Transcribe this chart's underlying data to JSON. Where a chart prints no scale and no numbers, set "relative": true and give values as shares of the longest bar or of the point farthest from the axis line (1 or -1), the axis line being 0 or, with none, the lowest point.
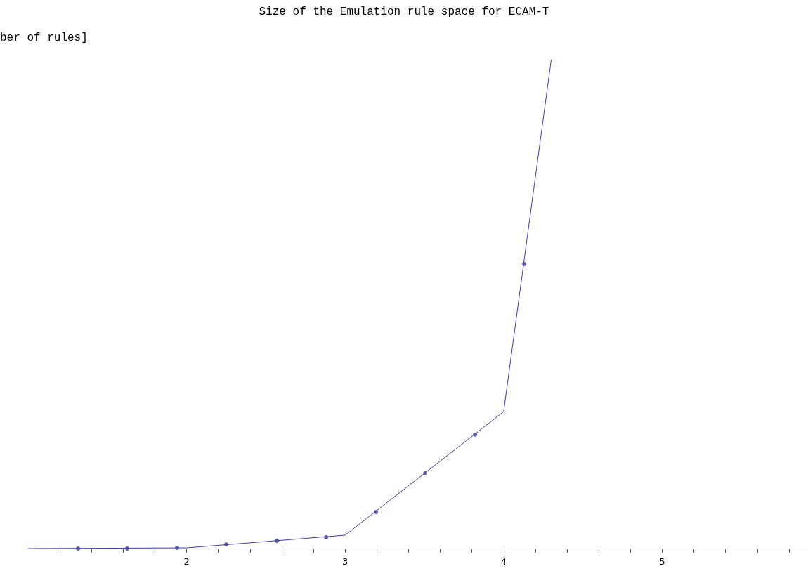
{
  "chart_data": {
    "type": "line",
    "title": "Size of the Emulation rule space for ECAM-T",
    "ylabel": "ber of rules]",
    "relative": true,
    "xlim": [
      1,
      5.92
    ],
    "xticks": [
      {
        "value": 1.2,
        "label": null
      },
      {
        "value": 1.4,
        "label": null
      },
      {
        "value": 1.6,
        "label": null
      },
      {
        "value": 1.8,
        "label": null
      },
      2,
      {
        "value": 2.2,
        "label": null
      },
      {
        "value": 2.4,
        "label": null
      },
      {
        "value": 2.6,
        "label": null
      },
      {
        "value": 2.8,
        "label": null
      },
      3,
      {
        "value": 3.2,
        "label": null
      },
      {
        "value": 3.4,
        "label": null
      },
      {
        "value": 3.6,
        "label": null
      },
      {
        "value": 3.8,
        "label": null
      },
      4,
      {
        "value": 4.2,
        "label": null
      },
      {
        "value": 4.4,
        "label": null
      },
      {
        "value": 4.6,
        "label": null
      },
      {
        "value": 4.8,
        "label": null
      },
      5,
      {
        "value": 5.2,
        "label": null
      },
      {
        "value": 5.4,
        "label": null
      },
      {
        "value": 5.6,
        "label": null
      },
      {
        "value": 5.8,
        "label": null
      }
    ],
    "grid": false,
    "series": [
      {
        "marker": "none",
        "color": "#3d3da8",
        "x": [
          1,
          2,
          3,
          4,
          4.3
        ],
        "values": [
          0,
          0.0014,
          0.0273,
          0.28,
          1
        ]
      },
      {
        "type": "scatter",
        "marker": "circle",
        "color": "#353599",
        "x": [
          1.315,
          1.625,
          1.94,
          2.25,
          2.57,
          2.88,
          3.195,
          3.505,
          3.82,
          4.13
        ],
        "values": [
          0,
          0,
          0.0014,
          0.0086,
          0.0158,
          0.023,
          0.0747,
          0.154,
          0.233,
          0.582
        ]
      }
    ]
  }
}
